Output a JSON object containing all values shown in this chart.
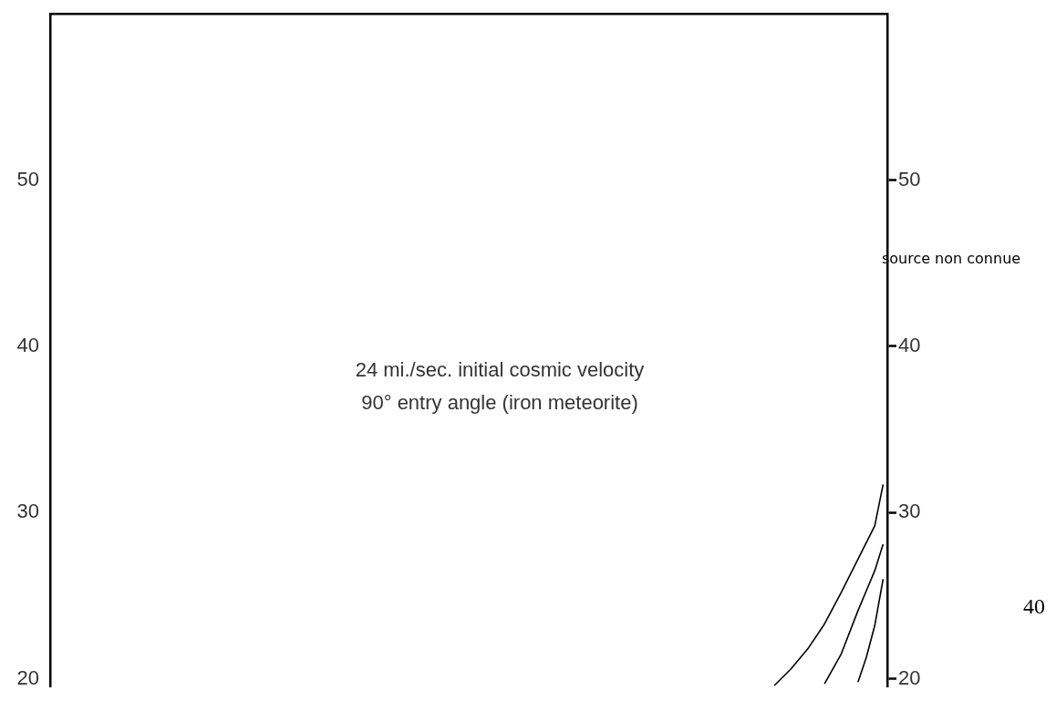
{
  "chart_data": {
    "type": "line",
    "categories": [
      null,
      null,
      null,
      null,
      null,
      null,
      null,
      null,
      null,
      null,
      null,
      null,
      null,
      null,
      null,
      null,
      null,
      null,
      null,
      null,
      null,
      null,
      null,
      null,
      null,
      null,
      null,
      null,
      null,
      null,
      null,
      null,
      null,
      null,
      null,
      null,
      null,
      null,
      null,
      null,
      null,
      null,
      null,
      null,
      null,
      null,
      null,
      null,
      null,
      null,
      null,
      null,
      null,
      null,
      null,
      null,
      null,
      null,
      null,
      null,
      null,
      null,
      null,
      null,
      null,
      null,
      null,
      null,
      null,
      null,
      null,
      null,
      null,
      null,
      null,
      null,
      null,
      null,
      null,
      null,
      null,
      null,
      null,
      null,
      null,
      null,
      null,
      null,
      null,
      null,
      null,
      null,
      null,
      null,
      null,
      null,
      null,
      null,
      null,
      null
    ],
    "series": [
      {
        "color": "#000000",
        "values": [
          null,
          null,
          null,
          null,
          null,
          null,
          null,
          null,
          null,
          null,
          null,
          null,
          null,
          null,
          null,
          null,
          null,
          null,
          null,
          null,
          null,
          null,
          null,
          null,
          null,
          null,
          null,
          null,
          null,
          null,
          null,
          null,
          null,
          null,
          null,
          null,
          null,
          null,
          null,
          null,
          null,
          null,
          null,
          null,
          null,
          null,
          null,
          null,
          null,
          null,
          null,
          null,
          null,
          null,
          null,
          null,
          null,
          null,
          null,
          null,
          null,
          null,
          null,
          null,
          null,
          null,
          null,
          null,
          null,
          null,
          null,
          null,
          null,
          null,
          null,
          null,
          null,
          null,
          null,
          null,
          null,
          null,
          null,
          null,
          null,
          null,
          19.6,
          null,
          20.6,
          null,
          21.8,
          null,
          23.3,
          null,
          25.2,
          null,
          27.2,
          28.2,
          29.2,
          31.7
        ]
      },
      {
        "color": "#000000",
        "values": [
          null,
          null,
          null,
          null,
          null,
          null,
          null,
          null,
          null,
          null,
          null,
          null,
          null,
          null,
          null,
          null,
          null,
          null,
          null,
          null,
          null,
          null,
          null,
          null,
          null,
          null,
          null,
          null,
          null,
          null,
          null,
          null,
          null,
          null,
          null,
          null,
          null,
          null,
          null,
          null,
          null,
          null,
          null,
          null,
          null,
          null,
          null,
          null,
          null,
          null,
          null,
          null,
          null,
          null,
          null,
          null,
          null,
          null,
          null,
          null,
          null,
          null,
          null,
          null,
          null,
          null,
          null,
          null,
          null,
          null,
          null,
          null,
          null,
          null,
          null,
          null,
          null,
          null,
          null,
          null,
          null,
          null,
          null,
          null,
          null,
          null,
          null,
          null,
          null,
          null,
          null,
          null,
          19.7,
          null,
          21.5,
          null,
          24.1,
          25.3,
          26.5,
          28.1
        ]
      },
      {
        "color": "#000000",
        "values": [
          null,
          null,
          null,
          null,
          null,
          null,
          null,
          null,
          null,
          null,
          null,
          null,
          null,
          null,
          null,
          null,
          null,
          null,
          null,
          null,
          null,
          null,
          null,
          null,
          null,
          null,
          null,
          null,
          null,
          null,
          null,
          null,
          null,
          null,
          null,
          null,
          null,
          null,
          null,
          null,
          null,
          null,
          null,
          null,
          null,
          null,
          null,
          null,
          null,
          null,
          null,
          null,
          null,
          null,
          null,
          null,
          null,
          null,
          null,
          null,
          null,
          null,
          null,
          null,
          null,
          null,
          null,
          null,
          null,
          null,
          null,
          null,
          null,
          null,
          null,
          null,
          null,
          null,
          null,
          null,
          null,
          null,
          null,
          null,
          null,
          null,
          null,
          null,
          null,
          null,
          null,
          null,
          null,
          null,
          null,
          null,
          19.8,
          21.3,
          23.2,
          26.0
        ]
      }
    ],
    "ylim": [
      19.5,
      60
    ],
    "yticks": [
      20,
      30,
      40,
      50
    ],
    "y2lim": [
      19.5,
      60
    ],
    "y2ticks": [
      20,
      30,
      40,
      50
    ],
    "grid": false,
    "legend": false,
    "marker": "none",
    "line_style": "solid",
    "annotations": [
      "24 mi./sec. initial cosmic velocity",
      "90° entry angle (iron meteorite)",
      "source non connue",
      "40"
    ]
  }
}
